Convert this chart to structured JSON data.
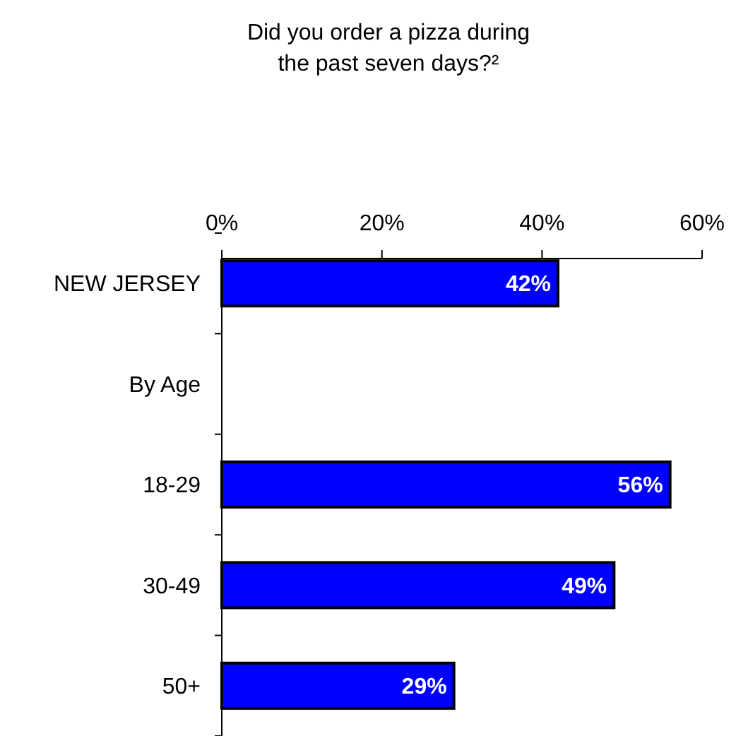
{
  "chart_data": {
    "type": "bar",
    "orientation": "horizontal",
    "title": "Did you order a pizza during the past seven days?²",
    "categories": [
      "NEW JERSEY",
      "By Age",
      "18-29",
      "30-49",
      "50+"
    ],
    "values": [
      42,
      null,
      56,
      49,
      29
    ],
    "value_labels": [
      "42%",
      null,
      "56%",
      "49%",
      "29%"
    ],
    "color": "#0000ff",
    "xlim": [
      0,
      60
    ],
    "xticks": [
      {
        "value": 0,
        "label": "0%"
      },
      {
        "value": 20,
        "label": "20%"
      },
      {
        "value": 40,
        "label": "40%"
      },
      {
        "value": 60,
        "label": "60%"
      }
    ]
  }
}
